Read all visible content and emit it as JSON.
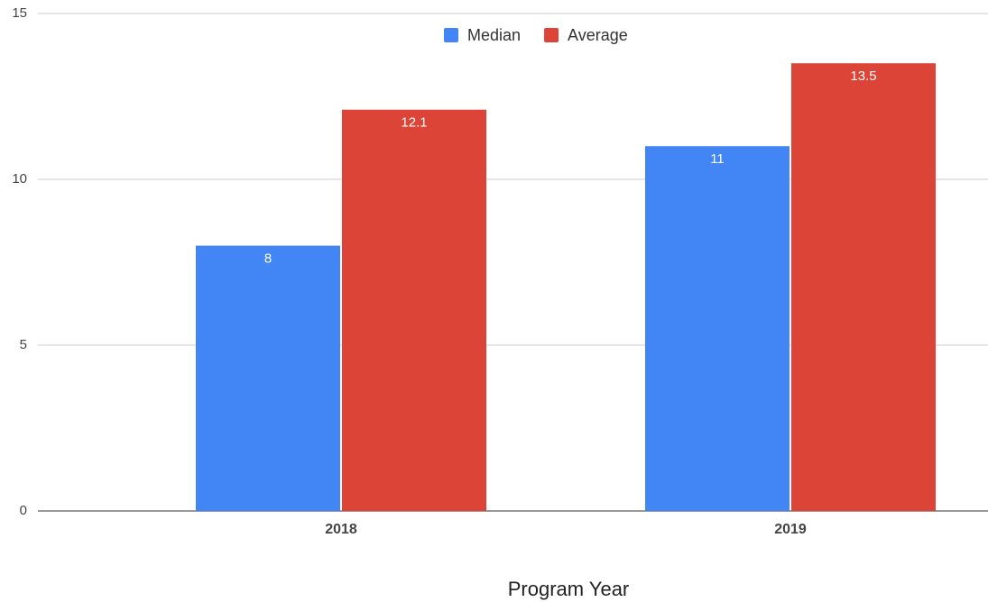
{
  "chart_data": {
    "type": "bar",
    "x_label": "Program Year",
    "categories": [
      "2018",
      "2019"
    ],
    "series": [
      {
        "name": "Median",
        "color": "#4285f4",
        "values": [
          8,
          11
        ]
      },
      {
        "name": "Average",
        "color": "#db4437",
        "values": [
          12.1,
          13.5
        ]
      }
    ],
    "ylim": [
      0,
      15
    ],
    "yticks": [
      0,
      5,
      10,
      15
    ],
    "grid": true,
    "legend": "top"
  }
}
